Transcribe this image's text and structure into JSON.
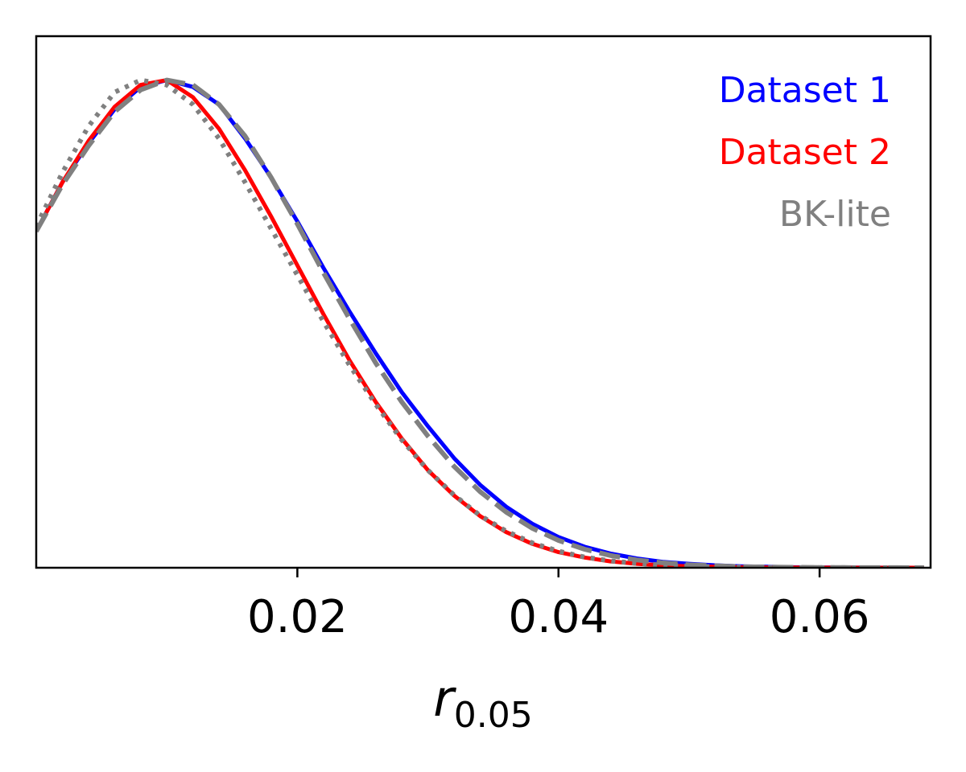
{
  "chart_data": {
    "type": "line",
    "xlabel": {
      "main": "r",
      "subscript": "0.05"
    },
    "ylabel": "",
    "xlim": [
      0.0,
      0.0685
    ],
    "ylim": [
      0.0,
      1.09
    ],
    "xticks": [
      0.02,
      0.04,
      0.06
    ],
    "xtick_labels": [
      "0.02",
      "0.04",
      "0.06"
    ],
    "yticks": [],
    "grid": false,
    "legend_position": "top-right",
    "series": [
      {
        "name": "Dataset 1",
        "color": "#0000ff",
        "style": "solid",
        "x": [
          0.0,
          0.002,
          0.004,
          0.006,
          0.008,
          0.01,
          0.012,
          0.014,
          0.016,
          0.018,
          0.02,
          0.022,
          0.024,
          0.026,
          0.028,
          0.03,
          0.032,
          0.034,
          0.036,
          0.038,
          0.04,
          0.042,
          0.044,
          0.046,
          0.048,
          0.05,
          0.052,
          0.054,
          0.056,
          0.058,
          0.06,
          0.062,
          0.064,
          0.066,
          0.068
        ],
        "y": [
          0.69,
          0.79,
          0.87,
          0.94,
          0.986,
          1.0,
          0.986,
          0.95,
          0.88,
          0.8,
          0.71,
          0.615,
          0.525,
          0.44,
          0.36,
          0.29,
          0.225,
          0.17,
          0.125,
          0.09,
          0.063,
          0.043,
          0.029,
          0.019,
          0.012,
          0.008,
          0.005,
          0.003,
          0.002,
          0.001,
          0.0007,
          0.0004,
          0.0002,
          0.0001,
          0.0
        ]
      },
      {
        "name": "Dataset 2",
        "color": "#ff0000",
        "style": "solid",
        "x": [
          0.0,
          0.002,
          0.004,
          0.006,
          0.008,
          0.01,
          0.012,
          0.014,
          0.016,
          0.018,
          0.02,
          0.022,
          0.024,
          0.026,
          0.028,
          0.03,
          0.032,
          0.034,
          0.036,
          0.038,
          0.04,
          0.042,
          0.044,
          0.046,
          0.048,
          0.05,
          0.052,
          0.054,
          0.056,
          0.058,
          0.06,
          0.062,
          0.064,
          0.066,
          0.068
        ],
        "y": [
          0.69,
          0.79,
          0.875,
          0.945,
          0.99,
          1.0,
          0.965,
          0.9,
          0.815,
          0.72,
          0.62,
          0.52,
          0.425,
          0.34,
          0.265,
          0.2,
          0.148,
          0.106,
          0.073,
          0.049,
          0.032,
          0.021,
          0.013,
          0.008,
          0.005,
          0.003,
          0.002,
          0.001,
          0.0006,
          0.0003,
          0.0002,
          0.0001,
          0.0,
          0.0,
          0.0
        ]
      },
      {
        "name": "BK-lite",
        "color": "#808080",
        "style": "dashed",
        "x": [
          0.0,
          0.002,
          0.004,
          0.006,
          0.008,
          0.01,
          0.012,
          0.014,
          0.016,
          0.018,
          0.02,
          0.022,
          0.024,
          0.026,
          0.028,
          0.03,
          0.032,
          0.034,
          0.036,
          0.038,
          0.04,
          0.042,
          0.044,
          0.046,
          0.048,
          0.05,
          0.052,
          0.054,
          0.056,
          0.058,
          0.06,
          0.062,
          0.064,
          0.066,
          0.068
        ],
        "y": [
          0.69,
          0.785,
          0.865,
          0.935,
          0.98,
          1.0,
          0.99,
          0.95,
          0.885,
          0.8,
          0.705,
          0.605,
          0.51,
          0.42,
          0.34,
          0.27,
          0.208,
          0.156,
          0.114,
          0.081,
          0.056,
          0.038,
          0.025,
          0.016,
          0.01,
          0.006,
          0.004,
          0.002,
          0.0013,
          0.0008,
          0.0005,
          0.0003,
          0.0002,
          0.0001,
          0.0
        ]
      },
      {
        "name": "BK-lite",
        "color": "#808080",
        "style": "dotted",
        "x": [
          0.0,
          0.002,
          0.004,
          0.006,
          0.008,
          0.01,
          0.012,
          0.014,
          0.016,
          0.018,
          0.02,
          0.022,
          0.024,
          0.026,
          0.028,
          0.03,
          0.032,
          0.034,
          0.036,
          0.038,
          0.04,
          0.042,
          0.044,
          0.046,
          0.048,
          0.05,
          0.052,
          0.054,
          0.056,
          0.058,
          0.06,
          0.062,
          0.064,
          0.066,
          0.068
        ],
        "y": [
          0.7,
          0.81,
          0.905,
          0.975,
          1.0,
          0.99,
          0.95,
          0.88,
          0.79,
          0.695,
          0.6,
          0.505,
          0.415,
          0.335,
          0.262,
          0.2,
          0.149,
          0.107,
          0.075,
          0.051,
          0.034,
          0.022,
          0.014,
          0.009,
          0.0055,
          0.0033,
          0.002,
          0.0012,
          0.0007,
          0.0004,
          0.0002,
          0.0001,
          0.0,
          0.0,
          0.0
        ]
      }
    ],
    "legend": [
      {
        "label": "Dataset 1",
        "color": "#0000ff"
      },
      {
        "label": "Dataset 2",
        "color": "#ff0000"
      },
      {
        "label": "BK-lite",
        "color": "#808080"
      }
    ]
  }
}
